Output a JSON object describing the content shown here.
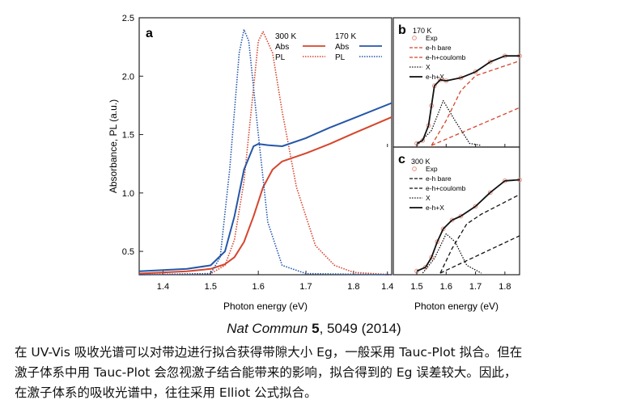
{
  "figure": {
    "panel_a": {
      "label": "a",
      "ylabel": "Absorbance, PL (a.u.)",
      "xlabel": "Photon energy (eV)",
      "xlim": [
        1.35,
        1.88
      ],
      "ylim": [
        0.3,
        2.5
      ],
      "xticks": [
        "1.4",
        "1.5",
        "1.6",
        "1.7",
        "1.8"
      ],
      "yticks": [
        "0.5",
        "1.0",
        "1.5",
        "2.0",
        "2.5"
      ],
      "legend": {
        "header_300": "300 K",
        "header_170": "170 K",
        "abs": "Abs",
        "pl": "PL"
      }
    },
    "panel_b": {
      "label": "b",
      "temp": "170 K",
      "legend": [
        "Exp",
        "e-h bare",
        "e-h+coulomb",
        "X",
        "e-h+X"
      ]
    },
    "panel_c": {
      "label": "c",
      "temp": "300 K",
      "legend": [
        "Exp",
        "e-h bare",
        "e-h+coulomb",
        "X",
        "e-h+X"
      ]
    },
    "bc_xlabel": "Photon energy (eV)",
    "bc_xlim": [
      1.42,
      1.85
    ],
    "bc_xticks": [
      "1.4",
      "1.5",
      "1.6",
      "1.7",
      "1.8"
    ],
    "colors": {
      "red": "#d6452c",
      "blue": "#2456a8",
      "black": "#111111",
      "pink": "#e88f80"
    }
  },
  "chart_data": [
    {
      "type": "line",
      "panel": "a",
      "xlabel": "Photon energy (eV)",
      "ylabel": "Absorbance, PL (a.u.)",
      "xlim": [
        1.35,
        1.88
      ],
      "ylim": [
        0.3,
        2.5
      ],
      "series": [
        {
          "name": "300 K Abs",
          "style": "solid",
          "color": "#d6452c",
          "x": [
            1.35,
            1.45,
            1.5,
            1.53,
            1.55,
            1.57,
            1.59,
            1.61,
            1.63,
            1.65,
            1.7,
            1.75,
            1.8,
            1.88
          ],
          "y": [
            0.31,
            0.33,
            0.35,
            0.39,
            0.45,
            0.58,
            0.8,
            1.05,
            1.2,
            1.27,
            1.34,
            1.42,
            1.51,
            1.65
          ]
        },
        {
          "name": "300 K PL",
          "style": "dotted",
          "color": "#d6452c",
          "x": [
            1.35,
            1.5,
            1.53,
            1.55,
            1.57,
            1.59,
            1.6,
            1.61,
            1.63,
            1.65,
            1.68,
            1.72,
            1.76,
            1.8,
            1.88
          ],
          "y": [
            0.3,
            0.31,
            0.38,
            0.6,
            1.1,
            1.9,
            2.3,
            2.38,
            2.2,
            1.7,
            1.05,
            0.55,
            0.38,
            0.32,
            0.3
          ]
        },
        {
          "name": "170 K Abs",
          "style": "solid",
          "color": "#2456a8",
          "x": [
            1.35,
            1.45,
            1.5,
            1.53,
            1.55,
            1.57,
            1.59,
            1.6,
            1.62,
            1.65,
            1.7,
            1.75,
            1.8,
            1.88
          ],
          "y": [
            0.33,
            0.35,
            0.38,
            0.5,
            0.8,
            1.2,
            1.4,
            1.42,
            1.41,
            1.4,
            1.47,
            1.56,
            1.64,
            1.77
          ]
        },
        {
          "name": "170 K PL",
          "style": "dotted",
          "color": "#2456a8",
          "x": [
            1.35,
            1.5,
            1.52,
            1.54,
            1.56,
            1.57,
            1.58,
            1.6,
            1.62,
            1.65,
            1.7,
            1.88
          ],
          "y": [
            0.3,
            0.31,
            0.45,
            1.2,
            2.2,
            2.4,
            2.3,
            1.5,
            0.75,
            0.38,
            0.31,
            0.3
          ]
        }
      ]
    },
    {
      "type": "line",
      "panel": "b",
      "title": "170 K",
      "xlim": [
        1.42,
        1.85
      ],
      "series": [
        {
          "name": "Exp",
          "style": "circles",
          "color": "#e88f80",
          "x": [
            1.5,
            1.52,
            1.54,
            1.55,
            1.56,
            1.58,
            1.6,
            1.65,
            1.7,
            1.75,
            1.8,
            1.85
          ],
          "y": [
            0.02,
            0.05,
            0.2,
            0.4,
            0.6,
            0.66,
            0.65,
            0.68,
            0.74,
            0.84,
            0.9,
            0.9
          ]
        },
        {
          "name": "e-h bare",
          "style": "dashed",
          "color": "#d6452c",
          "x": [
            1.55,
            1.85
          ],
          "y": [
            0.0,
            0.38
          ]
        },
        {
          "name": "e-h+coulomb",
          "style": "dashed",
          "color": "#d6452c",
          "x": [
            1.55,
            1.6,
            1.65,
            1.7,
            1.85
          ],
          "y": [
            0.0,
            0.25,
            0.55,
            0.7,
            0.85
          ]
        },
        {
          "name": "X",
          "style": "dotted",
          "color": "#111111",
          "x": [
            1.5,
            1.55,
            1.59,
            1.63,
            1.68,
            1.72
          ],
          "y": [
            0.0,
            0.15,
            0.45,
            0.25,
            0.02,
            0.0
          ]
        },
        {
          "name": "e-h+X",
          "style": "solid",
          "color": "#111111",
          "x": [
            1.5,
            1.52,
            1.54,
            1.55,
            1.56,
            1.58,
            1.6,
            1.65,
            1.7,
            1.75,
            1.8,
            1.85
          ],
          "y": [
            0.02,
            0.05,
            0.2,
            0.4,
            0.6,
            0.66,
            0.65,
            0.68,
            0.74,
            0.84,
            0.9,
            0.9
          ]
        }
      ]
    },
    {
      "type": "line",
      "panel": "c",
      "title": "300 K",
      "xlim": [
        1.42,
        1.85
      ],
      "series": [
        {
          "name": "Exp",
          "style": "circles",
          "color": "#e88f80",
          "x": [
            1.5,
            1.53,
            1.55,
            1.57,
            1.59,
            1.62,
            1.65,
            1.7,
            1.75,
            1.8,
            1.85
          ],
          "y": [
            0.02,
            0.06,
            0.16,
            0.32,
            0.45,
            0.54,
            0.58,
            0.68,
            0.82,
            0.94,
            0.95
          ]
        },
        {
          "name": "e-h bare",
          "style": "dashed",
          "color": "#111111",
          "x": [
            1.58,
            1.85
          ],
          "y": [
            0.0,
            0.38
          ]
        },
        {
          "name": "e-h+coulomb",
          "style": "dashed",
          "color": "#111111",
          "x": [
            1.58,
            1.62,
            1.67,
            1.72,
            1.85
          ],
          "y": [
            0.0,
            0.25,
            0.5,
            0.6,
            0.8
          ]
        },
        {
          "name": "X",
          "style": "dotted",
          "color": "#111111",
          "x": [
            1.52,
            1.56,
            1.6,
            1.63,
            1.67,
            1.72
          ],
          "y": [
            0.0,
            0.15,
            0.4,
            0.32,
            0.08,
            0.0
          ]
        },
        {
          "name": "e-h+X",
          "style": "solid",
          "color": "#111111",
          "x": [
            1.5,
            1.53,
            1.55,
            1.57,
            1.59,
            1.62,
            1.65,
            1.7,
            1.75,
            1.8,
            1.85
          ],
          "y": [
            0.02,
            0.06,
            0.16,
            0.32,
            0.45,
            0.54,
            0.58,
            0.68,
            0.82,
            0.94,
            0.95
          ]
        }
      ]
    }
  ],
  "caption": {
    "journal": "Nat Commun",
    "volume": "5",
    "pages": ", 5049 (2014)"
  },
  "body": {
    "line1": "在 UV-Vis 吸收光谱可以对带边进行拟合获得带隙大小 Eg，一般采用 Tauc-Plot 拟合。但在",
    "line2": "激子体系中用 Tauc-Plot 会忽视激子结合能带来的影响，拟合得到的 Eg 误差较大。因此，",
    "line3": "在激子体系的吸收光谱中，往往采用 Elliot 公式拟合。"
  }
}
